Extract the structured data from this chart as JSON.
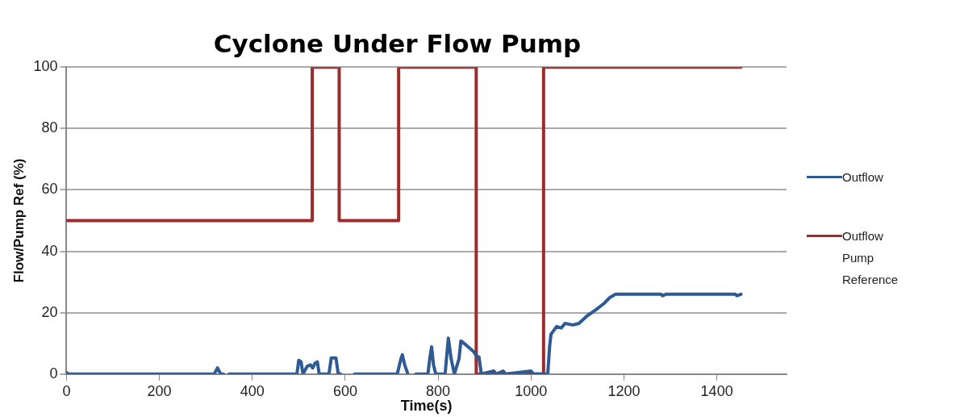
{
  "chart_data": {
    "type": "line",
    "title": "Cyclone Under Flow Pump",
    "xlabel": "Time(s)",
    "ylabel": "Flow/Pump Ref (%)",
    "xlim": [
      0,
      1550
    ],
    "xticks": [
      0,
      200,
      400,
      600,
      800,
      1000,
      1200,
      1400
    ],
    "ylim": [
      0,
      100
    ],
    "yticks": [
      0,
      20,
      40,
      60,
      80,
      100
    ],
    "grid": "y",
    "legend": "right",
    "marker": "none",
    "line_style": "solid",
    "series": [
      {
        "name": "Outflow",
        "color": "#2e5b94",
        "x": [
          0,
          5,
          318,
          325,
          332,
          338,
          344,
          350,
          496,
          500,
          505,
          509,
          518,
          525,
          530,
          535,
          540,
          544,
          565,
          570,
          580,
          585,
          590,
          600,
          620,
          712,
          720,
          723,
          728,
          735,
          740,
          752,
          778,
          782,
          786,
          790,
          795,
          815,
          822,
          828,
          835,
          845,
          849,
          860,
          876,
          882,
          888,
          893,
          920,
          925,
          940,
          945,
          1000,
          1005,
          1036,
          1040,
          1043,
          1055,
          1065,
          1073,
          1090,
          1103,
          1121,
          1140,
          1157,
          1170,
          1182,
          1280,
          1283,
          1290,
          1440,
          1443,
          1452
        ],
        "values": [
          0.5,
          0,
          0,
          2,
          0,
          0,
          null,
          0,
          0,
          4.5,
          4,
          0,
          2.5,
          3,
          2,
          3.5,
          4,
          0,
          0,
          5.3,
          5.3,
          0,
          0,
          null,
          0,
          0,
          5,
          6.3,
          3,
          0,
          null,
          0,
          0,
          5,
          8.9,
          3,
          0,
          0,
          11.7,
          5,
          0,
          5,
          10.8,
          9.5,
          7.4,
          6,
          5.5,
          0,
          1,
          0,
          1,
          0,
          1,
          0,
          0,
          9,
          13,
          15.5,
          15,
          16.5,
          16,
          16.5,
          19,
          21,
          23,
          25,
          26,
          26,
          25.5,
          26,
          26,
          25.5,
          26
        ]
      },
      {
        "name": "Outflow Pump Reference",
        "color": "#9b2d2d",
        "x": [
          0,
          529,
          529,
          587,
          587,
          715,
          715,
          882,
          882,
          1027,
          1027,
          1452
        ],
        "values": [
          50,
          50,
          100,
          100,
          50,
          50,
          100,
          100,
          0,
          0,
          100,
          100
        ]
      }
    ]
  }
}
